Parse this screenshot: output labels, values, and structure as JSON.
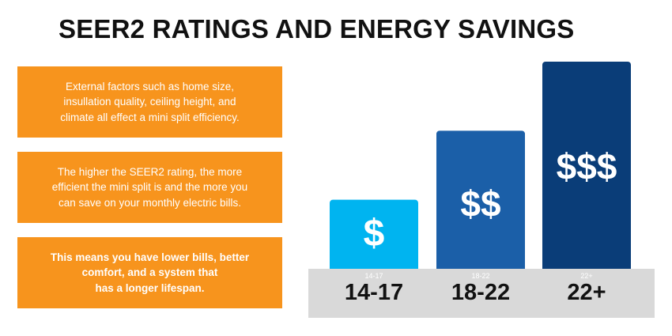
{
  "title": "SEER2 RATINGS AND ENERGY SAVINGS",
  "info_boxes": [
    "External factors such as home size,\ninsullation quality, ceiling height, and\nclimate all effect a mini split efficiency.",
    "The higher the SEER2 rating,  the more\nefficient the mini split is and the more you\ncan save on your monthly electric bills.",
    "This means you have lower bills, better\ncomfort, and a system that\nhas a longer lifespan."
  ],
  "colors": {
    "orange": "#f7941d",
    "bar_light": "#00b4f0",
    "bar_mid": "#1b5fa8",
    "bar_dark": "#0a3d78",
    "band": "#d9d9d9"
  },
  "chart_data": {
    "type": "bar",
    "title": "SEER2 RATINGS AND ENERGY SAVINGS",
    "categories": [
      "14-17",
      "18-22",
      "22+"
    ],
    "values": [
      1,
      2,
      3
    ],
    "bar_labels": [
      "$",
      "$$",
      "$$$"
    ],
    "ylim": [
      0,
      3
    ],
    "grid": false
  }
}
